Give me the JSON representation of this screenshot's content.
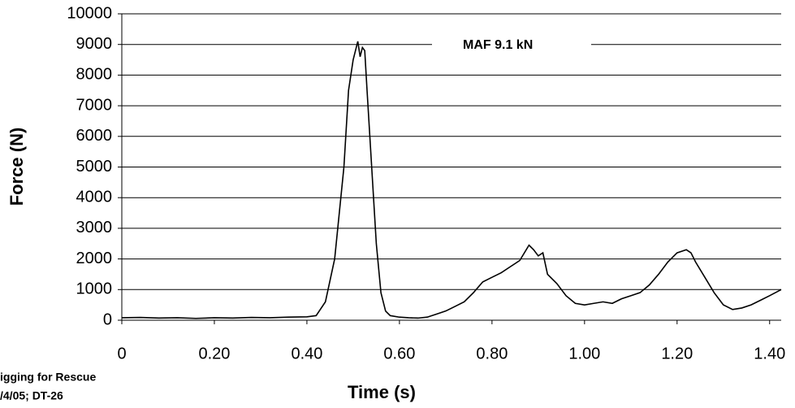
{
  "chart_data": {
    "type": "line",
    "x_label": "Time (s)",
    "y_label": "Force (N)",
    "annotation": "MAF 9.1 kN",
    "notes": [
      "igging for Rescue",
      "/4/05; DT-26"
    ],
    "xlim": [
      0,
      1.425
    ],
    "ylim": [
      0,
      10000
    ],
    "xticks": [
      0,
      {
        "value": 0.2,
        "label": "0.20"
      },
      {
        "value": 0.4,
        "label": "0.40"
      },
      {
        "value": 0.6,
        "label": "0.60"
      },
      {
        "value": 0.8,
        "label": "0.80"
      },
      {
        "value": 1.0,
        "label": "1.00"
      },
      {
        "value": 1.2,
        "label": "1.20"
      },
      {
        "value": 1.4,
        "label": "1.40"
      }
    ],
    "yticks": [
      0,
      1000,
      2000,
      3000,
      4000,
      5000,
      6000,
      7000,
      8000,
      9000,
      10000
    ],
    "grid": true,
    "x": [
      0,
      0.04,
      0.08,
      0.12,
      0.16,
      0.2,
      0.24,
      0.28,
      0.32,
      0.36,
      0.4,
      0.42,
      0.44,
      0.46,
      0.48,
      0.49,
      0.5,
      0.51,
      0.515,
      0.52,
      0.525,
      0.53,
      0.54,
      0.55,
      0.56,
      0.57,
      0.58,
      0.6,
      0.62,
      0.64,
      0.66,
      0.68,
      0.7,
      0.72,
      0.74,
      0.76,
      0.78,
      0.8,
      0.82,
      0.84,
      0.86,
      0.87,
      0.88,
      0.89,
      0.9,
      0.91,
      0.92,
      0.94,
      0.96,
      0.98,
      1.0,
      1.02,
      1.04,
      1.06,
      1.08,
      1.1,
      1.12,
      1.14,
      1.16,
      1.18,
      1.2,
      1.22,
      1.23,
      1.24,
      1.26,
      1.28,
      1.3,
      1.32,
      1.34,
      1.36,
      1.38,
      1.4,
      1.425
    ],
    "series": [
      {
        "name": "Force",
        "color": "#000000",
        "values": [
          80,
          90,
          70,
          80,
          60,
          80,
          70,
          90,
          80,
          100,
          110,
          150,
          600,
          2000,
          5000,
          7500,
          8500,
          9100,
          8600,
          8900,
          8800,
          7500,
          5000,
          2500,
          900,
          300,
          150,
          100,
          80,
          70,
          100,
          200,
          300,
          450,
          600,
          900,
          1250,
          1400,
          1550,
          1750,
          1950,
          2200,
          2450,
          2300,
          2100,
          2200,
          1500,
          1200,
          800,
          550,
          500,
          550,
          600,
          550,
          700,
          800,
          900,
          1150,
          1500,
          1900,
          2200,
          2300,
          2200,
          1900,
          1400,
          900,
          500,
          350,
          400,
          500,
          650,
          800,
          1000
        ]
      }
    ]
  }
}
